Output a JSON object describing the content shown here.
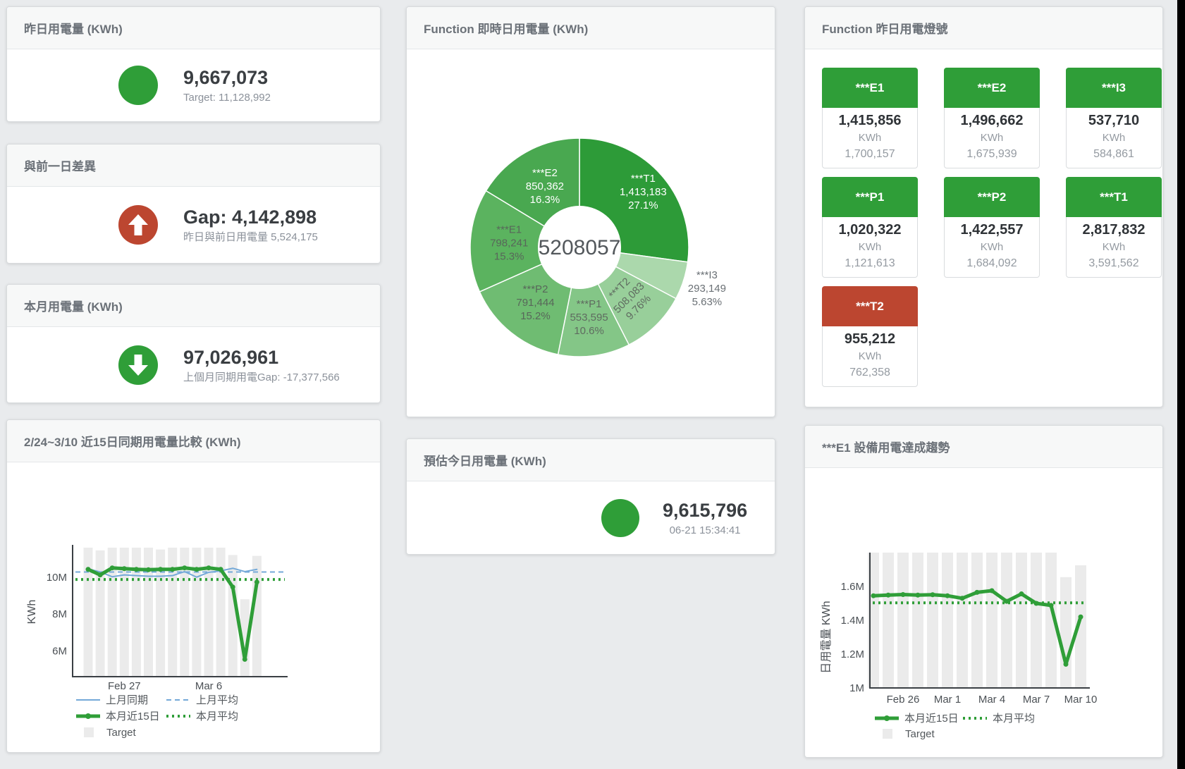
{
  "page": {
    "bg": "#e9ebed",
    "accent_green": "#2f9e38",
    "accent_red": "#bc4630",
    "bar_gray": "#ebebeb",
    "blue": "#74a9d8"
  },
  "cards": {
    "yesterday": {
      "title": "昨日用電量 (KWh)",
      "value": "9,667,073",
      "sub": "Target: 11,128,992"
    },
    "day_gap": {
      "title": "與前一日差異",
      "value": "Gap: 4,142,898",
      "sub": "昨日與前日用電量 5,524,175"
    },
    "month": {
      "title": "本月用電量 (KWh)",
      "value": "97,026,961",
      "sub": "上個月同期用電Gap: -17,377,566"
    },
    "compare": {
      "title": "2/24~3/10 近15日同期用電量比較 (KWh)"
    },
    "realtime": {
      "title": "Function 即時日用電量 (KWh)"
    },
    "estimate": {
      "title": "預估今日用電量 (KWh)",
      "value": "9,615,796",
      "sub": "06-21 15:34:41"
    },
    "lights": {
      "title": "Function 昨日用電燈號"
    },
    "trend": {
      "title": "***E1 設備用電達成趨勢"
    }
  },
  "lights_tiles": [
    {
      "label": "***E1",
      "value": "1,415,856",
      "unit": "KWh",
      "target": "1,700,157",
      "color": "#2f9e38"
    },
    {
      "label": "***E2",
      "value": "1,496,662",
      "unit": "KWh",
      "target": "1,675,939",
      "color": "#2f9e38"
    },
    {
      "label": "***I3",
      "value": "537,710",
      "unit": "KWh",
      "target": "584,861",
      "color": "#2f9e38"
    },
    {
      "label": "***P1",
      "value": "1,020,322",
      "unit": "KWh",
      "target": "1,121,613",
      "color": "#2f9e38"
    },
    {
      "label": "***P2",
      "value": "1,422,557",
      "unit": "KWh",
      "target": "1,684,092",
      "color": "#2f9e38"
    },
    {
      "label": "***T1",
      "value": "2,817,832",
      "unit": "KWh",
      "target": "3,591,562",
      "color": "#2f9e38"
    },
    {
      "label": "***T2",
      "value": "955,212",
      "unit": "KWh",
      "target": "762,358",
      "color": "#bc4630"
    }
  ],
  "chart_data": [
    {
      "type": "pie",
      "title": "Function 即時日用電量 (KWh)",
      "center_total": "5208057",
      "slices": [
        {
          "name": "***T1",
          "value": 1413183,
          "pct": "27.1%",
          "color": "#2d9b38",
          "label_color": "#ffffff"
        },
        {
          "name": "***I3",
          "value": 293149,
          "pct": "5.63%",
          "color": "#abd8ac",
          "label_color": "#6a7075",
          "outside": true
        },
        {
          "name": "***T2",
          "value": 508083,
          "pct": "9.76%",
          "color": "#98cf9a",
          "label_color": "#5f6b60",
          "rotate": -45
        },
        {
          "name": "***P1",
          "value": 553595,
          "pct": "10.6%",
          "color": "#84c687",
          "label_color": "#5f6b60"
        },
        {
          "name": "***P2",
          "value": 791444,
          "pct": "15.2%",
          "color": "#6fbc72",
          "label_color": "#58675a"
        },
        {
          "name": "***E1",
          "value": 798241,
          "pct": "15.3%",
          "color": "#5bb35f",
          "label_color": "#58675a"
        },
        {
          "name": "***E2",
          "value": 850362,
          "pct": "16.3%",
          "color": "#49a850",
          "label_color": "#ffffff"
        }
      ]
    },
    {
      "type": "line",
      "title": "2/24~3/10 近15日同期用電量比較 (KWh)",
      "ylabel": "KWh",
      "ylim": [
        4.6,
        11.75
      ],
      "grid": false,
      "legend_position": "bottom",
      "x": [
        "Feb 24",
        "Feb 25",
        "Feb 26",
        "Feb 27",
        "Feb 28",
        "Mar 1",
        "Mar 2",
        "Mar 3",
        "Mar 4",
        "Mar 5",
        "Mar 6",
        "Mar 7",
        "Mar 8",
        "Mar 9",
        "Mar 10"
      ],
      "x_ticks": [
        {
          "index": 3,
          "label": "Feb 27"
        },
        {
          "index": 10,
          "label": "Mar 6"
        }
      ],
      "y_ticks": [
        {
          "value": 6,
          "label": "6M"
        },
        {
          "value": 8,
          "label": "8M"
        },
        {
          "value": 10,
          "label": "10M"
        }
      ],
      "bars": {
        "name": "Target",
        "color": "#ebebeb",
        "values": [
          11.6,
          11.45,
          11.6,
          11.6,
          11.6,
          11.6,
          11.5,
          11.6,
          11.6,
          11.6,
          11.6,
          11.6,
          11.2,
          8.8,
          11.15
        ]
      },
      "series": [
        {
          "name": "上月同期",
          "color": "#74a9d8",
          "style": "solid",
          "width": 2,
          "values": [
            10.45,
            10.28,
            10.02,
            10.12,
            10.08,
            10.05,
            10.05,
            10.08,
            10.3,
            10.0,
            10.26,
            10.34,
            10.48,
            10.3,
            10.42
          ]
        },
        {
          "name": "上月平均",
          "color": "#74a9d8",
          "style": "dashed",
          "width": 2,
          "values": 10.28
        },
        {
          "name": "本月近15日",
          "color": "#2f9e38",
          "style": "solid",
          "width": 5,
          "markers": true,
          "values": [
            10.42,
            10.12,
            10.5,
            10.46,
            10.42,
            10.4,
            10.42,
            10.42,
            10.5,
            10.42,
            10.5,
            10.42,
            9.46,
            5.54,
            9.73
          ]
        },
        {
          "name": "本月平均",
          "color": "#2f9e38",
          "style": "dotted",
          "width": 4,
          "values": 9.87
        }
      ]
    },
    {
      "type": "line",
      "title": "***E1 設備用電達成趨勢",
      "ylabel": "日用電量 KWh",
      "ylim": [
        1.0,
        1.8
      ],
      "grid": false,
      "legend_position": "bottom",
      "x": [
        "Feb 24",
        "Feb 25",
        "Feb 26",
        "Feb 27",
        "Feb 28",
        "Mar 1",
        "Mar 2",
        "Mar 3",
        "Mar 4",
        "Mar 5",
        "Mar 6",
        "Mar 7",
        "Mar 8",
        "Mar 9",
        "Mar 10"
      ],
      "x_ticks": [
        {
          "index": 2,
          "label": "Feb 26"
        },
        {
          "index": 5,
          "label": "Mar 1"
        },
        {
          "index": 8,
          "label": "Mar 4"
        },
        {
          "index": 11,
          "label": "Mar 7"
        },
        {
          "index": 14,
          "label": "Mar 10"
        }
      ],
      "y_ticks": [
        {
          "value": 1,
          "label": "1M"
        },
        {
          "value": 1.2,
          "label": "1.2M"
        },
        {
          "value": 1.4,
          "label": "1.4M"
        },
        {
          "value": 1.6,
          "label": "1.6M"
        }
      ],
      "bars": {
        "name": "Target",
        "color": "#ebebeb",
        "values": [
          1.8,
          1.8,
          1.8,
          1.8,
          1.8,
          1.8,
          1.8,
          1.8,
          1.8,
          1.8,
          1.8,
          1.8,
          1.8,
          1.655,
          1.725
        ]
      },
      "series": [
        {
          "name": "本月近15日",
          "color": "#2f9e38",
          "style": "solid",
          "width": 5,
          "markers": true,
          "values": [
            1.545,
            1.549,
            1.552,
            1.549,
            1.551,
            1.545,
            1.53,
            1.565,
            1.575,
            1.512,
            1.556,
            1.5,
            1.488,
            1.14,
            1.42
          ]
        },
        {
          "name": "本月平均",
          "color": "#2f9e38",
          "style": "dotted",
          "width": 4,
          "values": 1.503
        }
      ]
    }
  ]
}
